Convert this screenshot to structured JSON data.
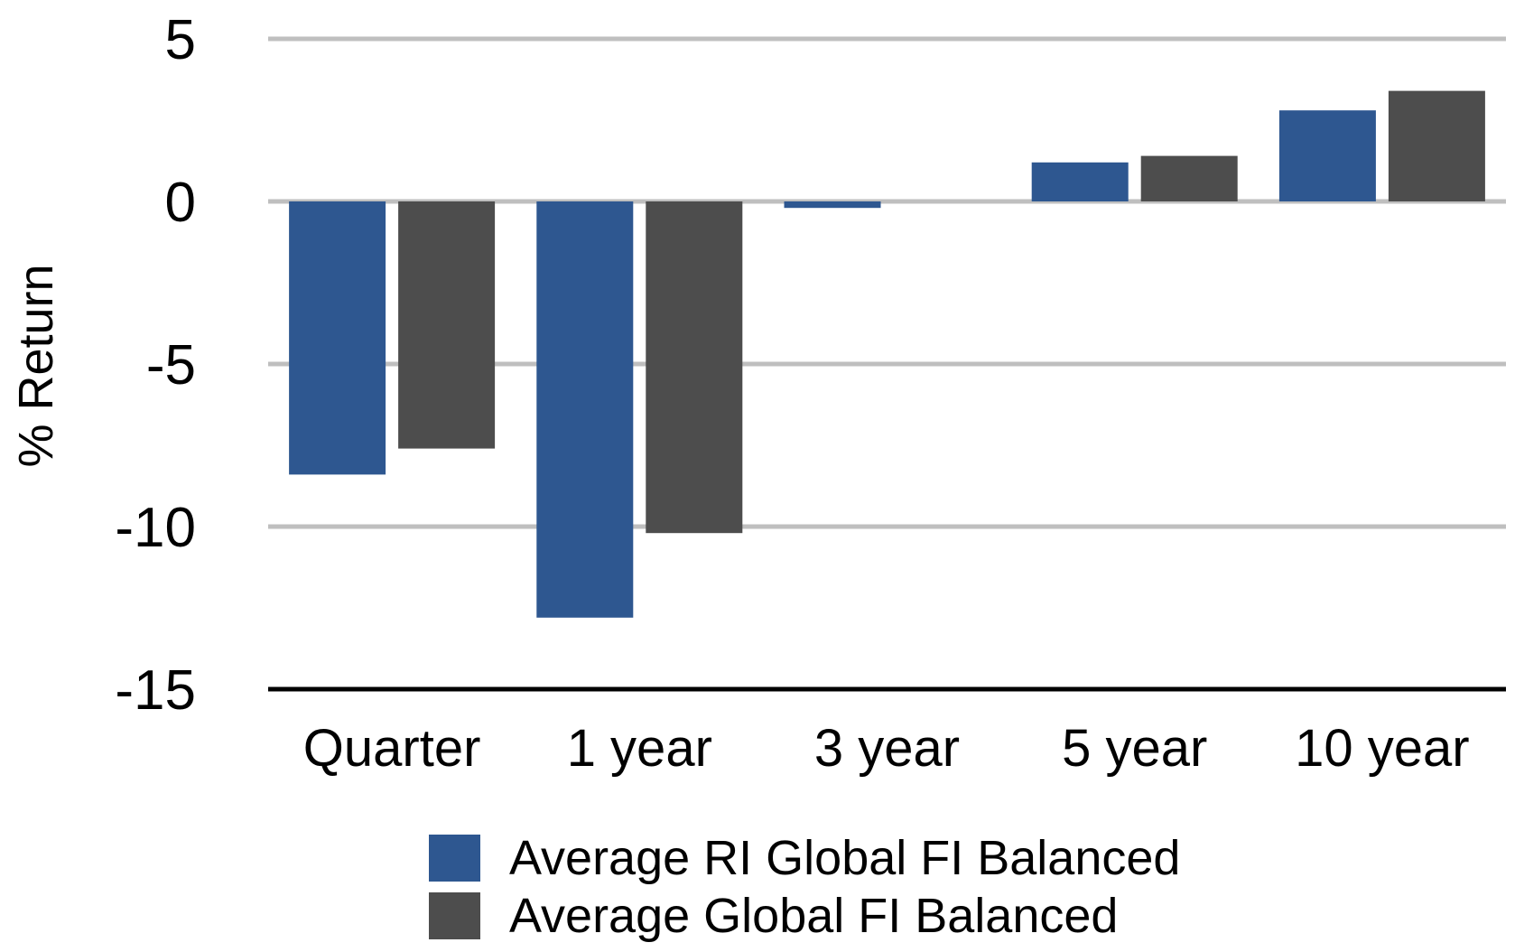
{
  "chart_data": {
    "type": "bar",
    "title": "",
    "xlabel": "",
    "ylabel": "% Return",
    "ylim": [
      -15,
      5
    ],
    "yticks": [
      5,
      0,
      -5,
      -10,
      -15
    ],
    "grid": true,
    "legend_position": "bottom",
    "categories": [
      "Quarter",
      "1 year",
      "3 year",
      "5 year",
      "10 year"
    ],
    "series": [
      {
        "name": "Average RI Global FI Balanced",
        "color": "#2e5790",
        "values": [
          -8.4,
          -12.8,
          -0.2,
          1.2,
          2.8
        ]
      },
      {
        "name": "Average Global FI Balanced",
        "color": "#4d4d4d",
        "values": [
          -7.6,
          -10.2,
          0.0,
          1.4,
          3.4
        ]
      }
    ]
  }
}
